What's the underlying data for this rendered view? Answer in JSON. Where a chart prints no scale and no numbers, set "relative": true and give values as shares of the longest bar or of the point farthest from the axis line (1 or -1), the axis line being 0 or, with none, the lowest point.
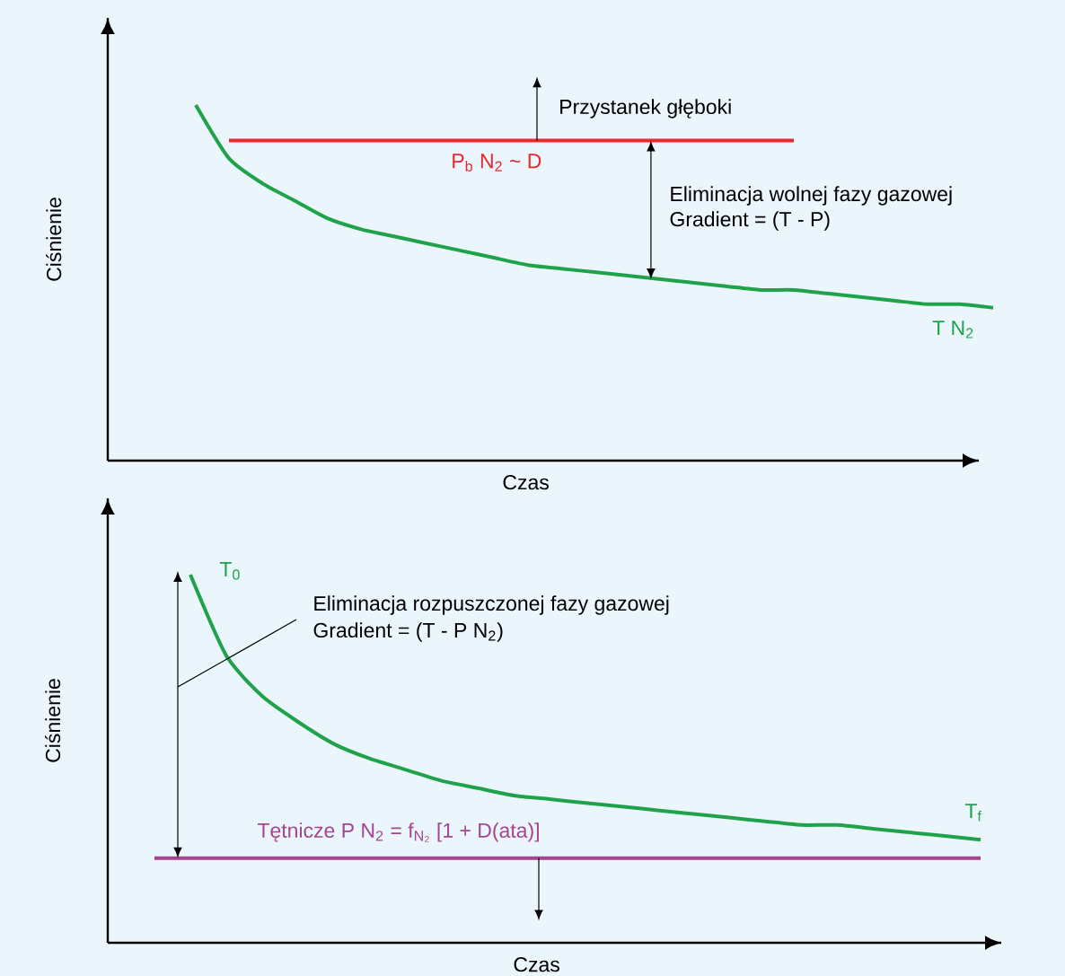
{
  "chart_data": [
    {
      "type": "line",
      "relative": true,
      "xlabel": "Czas",
      "ylabel": "Ciśnienie",
      "categories": [
        null,
        null,
        null,
        null,
        null,
        null,
        null,
        null,
        null,
        null,
        null,
        null,
        null,
        null,
        null,
        null,
        null,
        null,
        null,
        null,
        null,
        null,
        null,
        null,
        null
      ],
      "series": [
        {
          "name": "T N$_{2}$",
          "color": "#1fa24a",
          "values": [
            1,
            0.85,
            0.78,
            0.73,
            0.68,
            0.65,
            0.63,
            0.61,
            0.59,
            0.57,
            0.55,
            0.54,
            0.53,
            0.52,
            0.51,
            0.5,
            0.49,
            0.48,
            0.48,
            0.47,
            0.46,
            0.45,
            0.44,
            0.44,
            0.43
          ]
        },
        {
          "name": "P$_{b}$ N$_{2}$ ~ D",
          "color": "#e8282c",
          "values": [
            null,
            0.9,
            0.9,
            0.9,
            0.9,
            0.9,
            0.9,
            0.9,
            0.9,
            0.9,
            0.9,
            0.9,
            0.9,
            0.9,
            0.9,
            0.9,
            0.9,
            0.9,
            0.9,
            null,
            null,
            null,
            null,
            null,
            null
          ]
        }
      ],
      "annotations": [
        "Przystanek głęboki",
        "Eliminacja wolnej fazy gazowej",
        "Gradient = (T - P)"
      ]
    },
    {
      "type": "line",
      "relative": true,
      "xlabel": "Czas",
      "ylabel": "Ciśnienie",
      "categories": [
        null,
        null,
        null,
        null,
        null,
        null,
        null,
        null,
        null,
        null,
        null,
        null,
        null,
        null,
        null,
        null,
        null,
        null,
        null,
        null,
        null,
        null,
        null,
        null
      ],
      "series": [
        {
          "name": "T$_{0}$",
          "color": "#1fa24a",
          "values": [
            null,
            1,
            0.78,
            0.67,
            0.6,
            0.54,
            0.5,
            0.47,
            0.44,
            0.42,
            0.4,
            0.39,
            0.38,
            0.37,
            0.36,
            0.35,
            0.34,
            0.33,
            0.32,
            0.32,
            0.31,
            0.3,
            0.29,
            0.28
          ]
        },
        {
          "name": "Tętnicze P N$_{2}$ = f$_{N₂}$ [1 + D(ata)]",
          "color": "#a3458f",
          "values": [
            0.23,
            0.23,
            0.23,
            0.23,
            0.23,
            0.23,
            0.23,
            0.23,
            0.23,
            0.23,
            0.23,
            0.23,
            0.23,
            0.23,
            0.23,
            0.23,
            0.23,
            0.23,
            0.23,
            0.23,
            0.23,
            0.23,
            0.23,
            0.23
          ]
        }
      ],
      "annotations": [
        "Eliminacja rozpuszczonej fazy gazowej",
        "Gradient = (T - P N$_{2}$)",
        "T$_{f}$"
      ]
    }
  ]
}
